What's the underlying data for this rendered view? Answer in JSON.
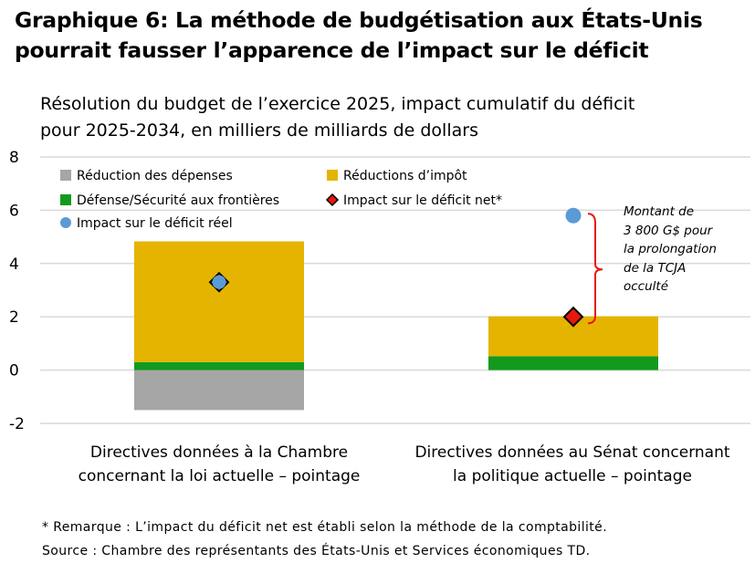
{
  "title_line1": "Graphique 6: La méthode de budgétisation aux États-Unis",
  "title_line2": "pourrait fausser l’apparence de l’impact sur le déficit",
  "subtitle_line1": "Résolution du budget de l’exercice 2025, impact cumulatif du déficit",
  "subtitle_line2": "pour 2025-2034, en milliers de milliards de dollars",
  "annotation_lines": [
    "Montant de",
    "3 800 G$ pour",
    "la prolongation",
    "de la TCJA",
    "occulté"
  ],
  "footnote_line1": "* Remarque : L’impact du déficit net est établi selon la méthode de la comptabilité.",
  "footnote_line2": "Source : Chambre des représentants des États-Unis et Services économiques TD.",
  "colors": {
    "spending": "#a6a6a6",
    "tax": "#e5b400",
    "defense": "#129a1e",
    "net": "#e8180c",
    "real": "#5b9bd5",
    "bracket": "#e8180c",
    "grid": "#d9d9d9"
  },
  "chart_data": {
    "type": "bar",
    "stacked": true,
    "title": "Graphique 6: La méthode de budgétisation aux États-Unis pourrait fausser l’apparence de l’impact sur le déficit",
    "subtitle": "Résolution du budget de l’exercice 2025, impact cumulatif du déficit pour 2025-2034, en milliers de milliards de dollars",
    "categories": [
      [
        "Directives données à la Chambre",
        "concernant la loi actuelle – pointage"
      ],
      [
        "Directives données au Sénat concernant",
        "la politique actuelle – pointage"
      ]
    ],
    "series": [
      {
        "name": "Réduction des dépenses",
        "values": [
          -1.5,
          0.0
        ]
      },
      {
        "name": "Réductions d’impôt",
        "values": [
          4.53,
          1.5
        ]
      },
      {
        "name": "Défense/Sécurité aux frontières",
        "values": [
          0.3,
          0.52
        ]
      }
    ],
    "markers": [
      {
        "name": "Impact sur le déficit net*",
        "values": [
          3.3,
          2.0
        ],
        "shape": "diamond"
      },
      {
        "name": "Impact sur le déficit réel",
        "values": [
          3.3,
          5.8
        ],
        "shape": "circle"
      }
    ],
    "yticks": [
      8,
      6,
      4,
      2,
      0,
      -2
    ],
    "ytick_labels": [
      "8",
      "6",
      "4",
      "2",
      "0",
      "-2"
    ],
    "ylim": [
      -2,
      8
    ],
    "grid": true,
    "legend": {
      "placement": "top",
      "items": [
        {
          "label": "Réduction des dépenses",
          "shape": "square",
          "color_key": "spending"
        },
        {
          "label": "Réductions d’impôt",
          "shape": "square",
          "color_key": "tax"
        },
        {
          "label": "Défense/Sécurité aux frontières",
          "shape": "square",
          "color_key": "defense"
        },
        {
          "label": "Impact sur le déficit net*",
          "shape": "diamond",
          "color_key": "net"
        },
        {
          "label": "Impact sur le déficit réel",
          "shape": "circle",
          "color_key": "real"
        }
      ]
    }
  }
}
